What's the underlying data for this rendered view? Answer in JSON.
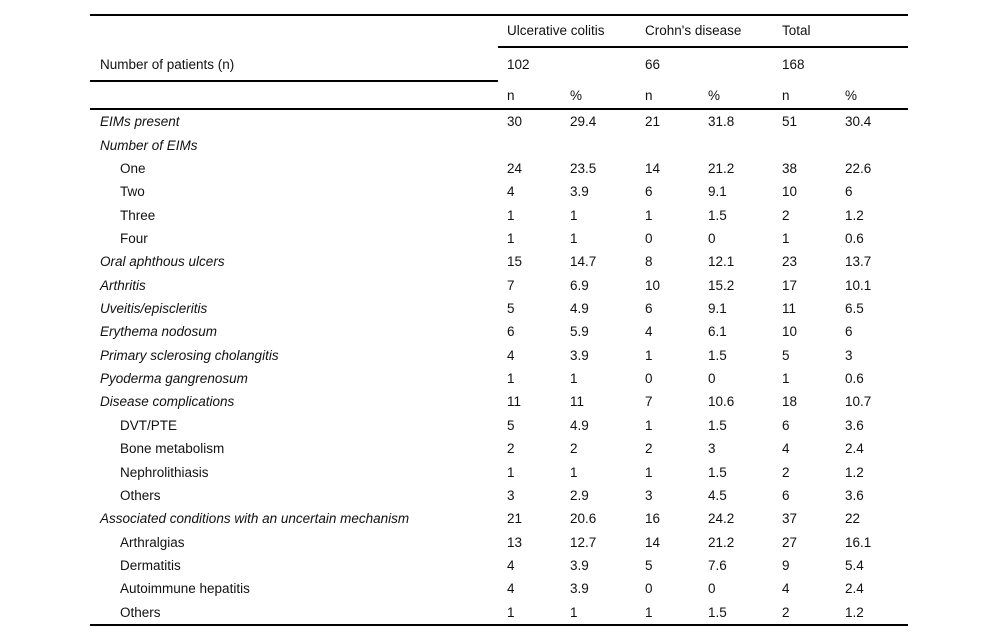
{
  "table": {
    "stub_header": "Number of patients (n)",
    "col_groups": [
      {
        "label": "Ulcerative colitis",
        "n_patients": "102"
      },
      {
        "label": "Crohn's disease",
        "n_patients": "66"
      },
      {
        "label": "Total",
        "n_patients": "168"
      }
    ],
    "sub_headers": [
      "n",
      "%",
      "n",
      "%",
      "n",
      "%"
    ],
    "rows": [
      {
        "label": "EIMs present",
        "style": "category",
        "values": [
          "30",
          "29.4",
          "21",
          "31.8",
          "51",
          "30.4"
        ]
      },
      {
        "label": "Number of EIMs",
        "style": "category",
        "values": [
          "",
          "",
          "",
          "",
          "",
          ""
        ]
      },
      {
        "label": "One",
        "style": "sub",
        "values": [
          "24",
          "23.5",
          "14",
          "21.2",
          "38",
          "22.6"
        ]
      },
      {
        "label": "Two",
        "style": "sub",
        "values": [
          "4",
          "3.9",
          "6",
          "9.1",
          "10",
          "6"
        ]
      },
      {
        "label": "Three",
        "style": "sub",
        "values": [
          "1",
          "1",
          "1",
          "1.5",
          "2",
          "1.2"
        ]
      },
      {
        "label": "Four",
        "style": "sub",
        "values": [
          "1",
          "1",
          "0",
          "0",
          "1",
          "0.6"
        ]
      },
      {
        "label": "Oral aphthous ulcers",
        "style": "category",
        "values": [
          "15",
          "14.7",
          "8",
          "12.1",
          "23",
          "13.7"
        ]
      },
      {
        "label": "Arthritis",
        "style": "category",
        "values": [
          "7",
          "6.9",
          "10",
          "15.2",
          "17",
          "10.1"
        ]
      },
      {
        "label": "Uveitis/episcleritis",
        "style": "category",
        "values": [
          "5",
          "4.9",
          "6",
          "9.1",
          "11",
          "6.5"
        ]
      },
      {
        "label": "Erythema nodosum",
        "style": "category",
        "values": [
          "6",
          "5.9",
          "4",
          "6.1",
          "10",
          "6"
        ]
      },
      {
        "label": "Primary sclerosing cholangitis",
        "style": "category",
        "values": [
          "4",
          "3.9",
          "1",
          "1.5",
          "5",
          "3"
        ]
      },
      {
        "label": "Pyoderma gangrenosum",
        "style": "category",
        "values": [
          "1",
          "1",
          "0",
          "0",
          "1",
          "0.6"
        ]
      },
      {
        "label": "Disease complications",
        "style": "category",
        "values": [
          "11",
          "11",
          "7",
          "10.6",
          "18",
          "10.7"
        ]
      },
      {
        "label": "DVT/PTE",
        "style": "sub",
        "values": [
          "5",
          "4.9",
          "1",
          "1.5",
          "6",
          "3.6"
        ]
      },
      {
        "label": "Bone metabolism",
        "style": "sub",
        "values": [
          "2",
          "2",
          "2",
          "3",
          "4",
          "2.4"
        ]
      },
      {
        "label": "Nephrolithiasis",
        "style": "sub",
        "values": [
          "1",
          "1",
          "1",
          "1.5",
          "2",
          "1.2"
        ]
      },
      {
        "label": "Others",
        "style": "sub",
        "values": [
          "3",
          "2.9",
          "3",
          "4.5",
          "6",
          "3.6"
        ]
      },
      {
        "label": "Associated conditions with an uncertain mechanism",
        "style": "category",
        "values": [
          "21",
          "20.6",
          "16",
          "24.2",
          "37",
          "22"
        ]
      },
      {
        "label": "Arthralgias",
        "style": "sub",
        "values": [
          "13",
          "12.7",
          "14",
          "21.2",
          "27",
          "16.1"
        ]
      },
      {
        "label": "Dermatitis",
        "style": "sub",
        "values": [
          "4",
          "3.9",
          "5",
          "7.6",
          "9",
          "5.4"
        ]
      },
      {
        "label": "Autoimmune hepatitis",
        "style": "sub",
        "values": [
          "4",
          "3.9",
          "0",
          "0",
          "4",
          "2.4"
        ]
      },
      {
        "label": "Others",
        "style": "sub",
        "values": [
          "1",
          "1",
          "1",
          "1.5",
          "2",
          "1.2"
        ]
      }
    ]
  }
}
